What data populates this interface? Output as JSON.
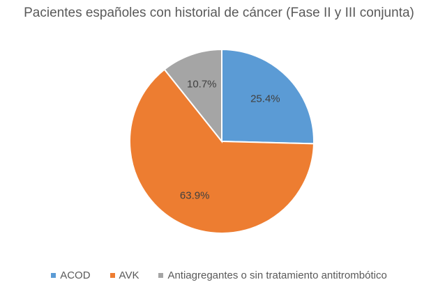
{
  "chart_data": {
    "type": "pie",
    "title": "Pacientes españoles con historial de cáncer (Fase II y III conjunta)",
    "categories": [
      "ACOD",
      "AVK",
      "Antiagregantes o sin tratamiento antitrombótico"
    ],
    "values": [
      25.4,
      63.9,
      10.7
    ],
    "data_labels": [
      "25.4%",
      "63.9%",
      "10.7%"
    ],
    "colors": [
      "#5B9BD5",
      "#ED7D31",
      "#A5A5A5"
    ],
    "start_angle_deg": 0,
    "direction": "clockwise",
    "legend_position": "bottom",
    "grid": false
  }
}
